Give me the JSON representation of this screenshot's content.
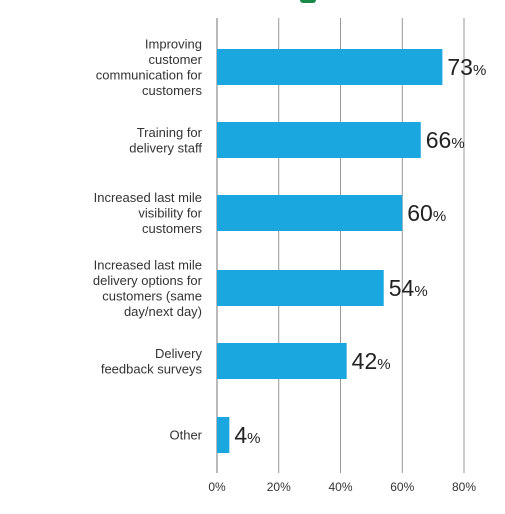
{
  "chart_data": {
    "type": "bar",
    "orientation": "horizontal",
    "title": "",
    "xlabel": "",
    "ylabel": "",
    "categories": [
      "Improving customer communication for customers",
      "Training for delivery staff",
      "Increased last mile visibility for customers",
      "Increased last mile delivery options for customers (same day/next day)",
      "Delivery feedback surveys",
      "Other"
    ],
    "category_lines": [
      [
        "Improving",
        "customer",
        "communication for",
        "customers"
      ],
      [
        "Training for",
        "delivery staff"
      ],
      [
        "Increased last mile",
        "visibility for",
        "customers"
      ],
      [
        "Increased last mile",
        "delivery options for",
        "customers (same",
        "day/next day)"
      ],
      [
        "Delivery",
        "feedback surveys"
      ],
      [
        "Other"
      ]
    ],
    "values": [
      73,
      66,
      60,
      54,
      42,
      4
    ],
    "value_labels": [
      "73",
      "66",
      "60",
      "54",
      "42",
      "4"
    ],
    "value_suffix": "%",
    "xlim": [
      0,
      80
    ],
    "xticks": [
      0,
      20,
      40,
      60,
      80
    ],
    "xtick_labels": [
      "0%",
      "20%",
      "40%",
      "60%",
      "80%"
    ],
    "grid": true,
    "bar_color": "#1aa7e0",
    "grid_color": "#8c8c8c",
    "text_color": "#333333"
  }
}
